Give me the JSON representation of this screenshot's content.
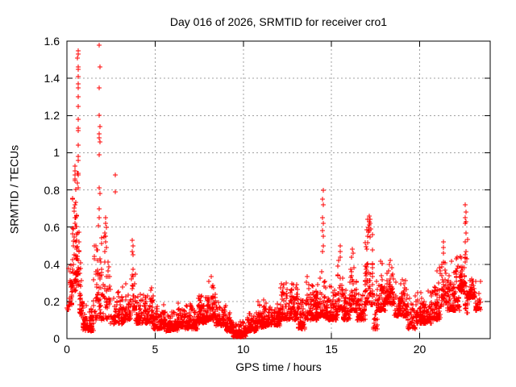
{
  "chart_data": {
    "type": "scatter",
    "title": "Day 016 of 2026, SRMTID for receiver cro1",
    "xlabel": "GPS time / hours",
    "ylabel": "SRMTID / TECUs",
    "xlim": [
      0,
      24
    ],
    "ylim": [
      0,
      1.6
    ],
    "xticks": [
      0,
      5,
      10,
      15,
      20
    ],
    "xtick_labels": [
      "0",
      "5",
      "10",
      "15",
      "20"
    ],
    "yticks": [
      0,
      0.2,
      0.4,
      0.6,
      0.8,
      1,
      1.2,
      1.4,
      1.6
    ],
    "ytick_labels": [
      "0",
      "0.2",
      "0.4",
      "0.6",
      "0.8",
      "1",
      "1.2",
      "1.4",
      "1.6"
    ],
    "grid": true,
    "legend": "none",
    "marker": "plus",
    "colors": {
      "marker": "#ff0000",
      "grid": "#a0a0a0",
      "border": "#000000",
      "background": "#ffffff",
      "text": "#000000"
    },
    "seed": 42,
    "band_segments": [
      [
        0.0,
        0.1,
        0.15,
        0.22,
        6
      ],
      [
        0.1,
        0.3,
        0.18,
        0.45,
        25
      ],
      [
        0.3,
        0.5,
        0.25,
        0.9,
        30
      ],
      [
        0.5,
        0.7,
        0.28,
        1.0,
        45
      ],
      [
        0.7,
        0.9,
        0.12,
        0.45,
        30
      ],
      [
        0.9,
        1.5,
        0.04,
        0.2,
        90
      ],
      [
        1.5,
        1.65,
        0.1,
        0.6,
        15
      ],
      [
        1.65,
        2.0,
        0.1,
        0.65,
        50
      ],
      [
        2.0,
        2.45,
        0.1,
        0.65,
        40
      ],
      [
        2.45,
        2.8,
        0.08,
        0.3,
        30
      ],
      [
        2.8,
        3.2,
        0.08,
        0.3,
        45
      ],
      [
        3.2,
        3.65,
        0.1,
        0.3,
        50
      ],
      [
        3.65,
        3.9,
        0.15,
        0.53,
        25
      ],
      [
        3.9,
        4.3,
        0.08,
        0.28,
        45
      ],
      [
        4.3,
        4.9,
        0.08,
        0.3,
        80
      ],
      [
        4.9,
        5.6,
        0.05,
        0.2,
        90
      ],
      [
        5.6,
        6.3,
        0.04,
        0.16,
        90
      ],
      [
        6.3,
        6.7,
        0.06,
        0.2,
        55
      ],
      [
        6.7,
        7.4,
        0.05,
        0.2,
        95
      ],
      [
        7.4,
        7.9,
        0.08,
        0.3,
        70
      ],
      [
        7.9,
        8.45,
        0.1,
        0.35,
        75
      ],
      [
        8.45,
        9.0,
        0.07,
        0.22,
        75
      ],
      [
        9.0,
        9.4,
        0.04,
        0.15,
        60
      ],
      [
        9.4,
        10.2,
        0.01,
        0.1,
        130
      ],
      [
        10.2,
        10.8,
        0.04,
        0.16,
        85
      ],
      [
        10.8,
        11.3,
        0.06,
        0.23,
        70
      ],
      [
        11.3,
        12.1,
        0.07,
        0.2,
        110
      ],
      [
        12.1,
        13.1,
        0.1,
        0.32,
        140
      ],
      [
        13.1,
        13.5,
        0.05,
        0.25,
        55
      ],
      [
        13.5,
        14.3,
        0.1,
        0.35,
        110
      ],
      [
        14.3,
        14.65,
        0.12,
        0.42,
        40
      ],
      [
        14.65,
        15.35,
        0.1,
        0.3,
        95
      ],
      [
        15.35,
        15.65,
        0.15,
        0.5,
        35
      ],
      [
        15.65,
        16.05,
        0.1,
        0.28,
        55
      ],
      [
        16.05,
        16.45,
        0.15,
        0.48,
        55
      ],
      [
        16.45,
        16.9,
        0.1,
        0.3,
        60
      ],
      [
        16.9,
        17.35,
        0.18,
        0.66,
        70
      ],
      [
        17.35,
        17.6,
        0.05,
        0.35,
        25
      ],
      [
        17.6,
        18.1,
        0.15,
        0.45,
        70
      ],
      [
        18.1,
        18.55,
        0.18,
        0.47,
        65
      ],
      [
        18.55,
        19.3,
        0.12,
        0.35,
        100
      ],
      [
        19.3,
        19.8,
        0.05,
        0.28,
        50
      ],
      [
        19.8,
        20.7,
        0.08,
        0.3,
        110
      ],
      [
        20.7,
        21.2,
        0.1,
        0.4,
        70
      ],
      [
        21.2,
        21.55,
        0.18,
        0.52,
        40
      ],
      [
        21.55,
        22.25,
        0.15,
        0.45,
        100
      ],
      [
        22.25,
        22.55,
        0.25,
        0.5,
        50
      ],
      [
        22.55,
        22.75,
        0.14,
        0.72,
        25
      ],
      [
        22.75,
        23.15,
        0.22,
        0.38,
        60
      ],
      [
        23.15,
        23.45,
        0.15,
        0.33,
        30
      ]
    ],
    "spike_points": [
      [
        0.62,
        1.55
      ],
      [
        0.63,
        1.53
      ],
      [
        0.61,
        1.51
      ],
      [
        0.62,
        1.46
      ],
      [
        0.64,
        1.45
      ],
      [
        0.62,
        1.41
      ],
      [
        0.63,
        1.37
      ],
      [
        0.62,
        1.35
      ],
      [
        0.62,
        1.3
      ],
      [
        0.63,
        1.25
      ],
      [
        0.62,
        1.18
      ],
      [
        0.63,
        1.13
      ],
      [
        0.65,
        1.12
      ],
      [
        0.62,
        1.04
      ],
      [
        0.63,
        0.98
      ],
      [
        0.62,
        0.96
      ],
      [
        0.64,
        0.89
      ],
      [
        0.66,
        0.88
      ],
      [
        0.62,
        0.81
      ],
      [
        0.45,
        0.93
      ],
      [
        0.46,
        0.9
      ],
      [
        0.44,
        0.88
      ],
      [
        0.45,
        0.86
      ],
      [
        0.46,
        0.85
      ],
      [
        0.44,
        0.72
      ],
      [
        0.45,
        0.65
      ],
      [
        0.46,
        0.62
      ],
      [
        1.85,
        1.58
      ],
      [
        1.86,
        1.46
      ],
      [
        1.84,
        1.35
      ],
      [
        1.85,
        1.2
      ],
      [
        1.86,
        1.14
      ],
      [
        1.84,
        1.1
      ],
      [
        1.85,
        1.08
      ],
      [
        1.87,
        1.06
      ],
      [
        1.85,
        0.99
      ],
      [
        1.83,
        0.81
      ],
      [
        1.86,
        0.78
      ],
      [
        1.84,
        0.7
      ],
      [
        1.85,
        0.65
      ],
      [
        2.74,
        0.88
      ],
      [
        2.74,
        0.79
      ],
      [
        2.2,
        0.65
      ],
      [
        2.18,
        0.62
      ],
      [
        2.22,
        0.6
      ],
      [
        2.17,
        0.57
      ],
      [
        2.21,
        0.55
      ],
      [
        2.19,
        0.52
      ],
      [
        2.23,
        0.49
      ],
      [
        2.16,
        0.47
      ],
      [
        3.72,
        0.53
      ],
      [
        3.75,
        0.5
      ],
      [
        3.7,
        0.47
      ],
      [
        3.74,
        0.45
      ],
      [
        14.52,
        0.8
      ],
      [
        14.5,
        0.75
      ],
      [
        14.53,
        0.72
      ],
      [
        14.51,
        0.65
      ],
      [
        14.54,
        0.62
      ],
      [
        14.5,
        0.58
      ],
      [
        14.52,
        0.55
      ],
      [
        14.55,
        0.5
      ],
      [
        14.49,
        0.47
      ],
      [
        17.15,
        0.66
      ],
      [
        17.18,
        0.64
      ],
      [
        17.12,
        0.63
      ],
      [
        17.2,
        0.62
      ],
      [
        17.16,
        0.61
      ],
      [
        17.1,
        0.6
      ],
      [
        17.22,
        0.59
      ],
      [
        17.14,
        0.58
      ],
      [
        15.5,
        0.5
      ],
      [
        15.48,
        0.47
      ],
      [
        15.52,
        0.44
      ],
      [
        16.2,
        0.48
      ],
      [
        16.25,
        0.46
      ],
      [
        16.15,
        0.44
      ],
      [
        21.35,
        0.52
      ],
      [
        21.37,
        0.49
      ],
      [
        21.33,
        0.46
      ],
      [
        22.6,
        0.72
      ],
      [
        22.62,
        0.68
      ],
      [
        22.58,
        0.65
      ],
      [
        22.63,
        0.63
      ],
      [
        22.59,
        0.62
      ],
      [
        22.61,
        0.57
      ],
      [
        22.6,
        0.52
      ],
      [
        22.64,
        0.47
      ],
      [
        22.57,
        0.44
      ],
      [
        22.62,
        0.16
      ],
      [
        22.68,
        0.14
      ]
    ]
  }
}
